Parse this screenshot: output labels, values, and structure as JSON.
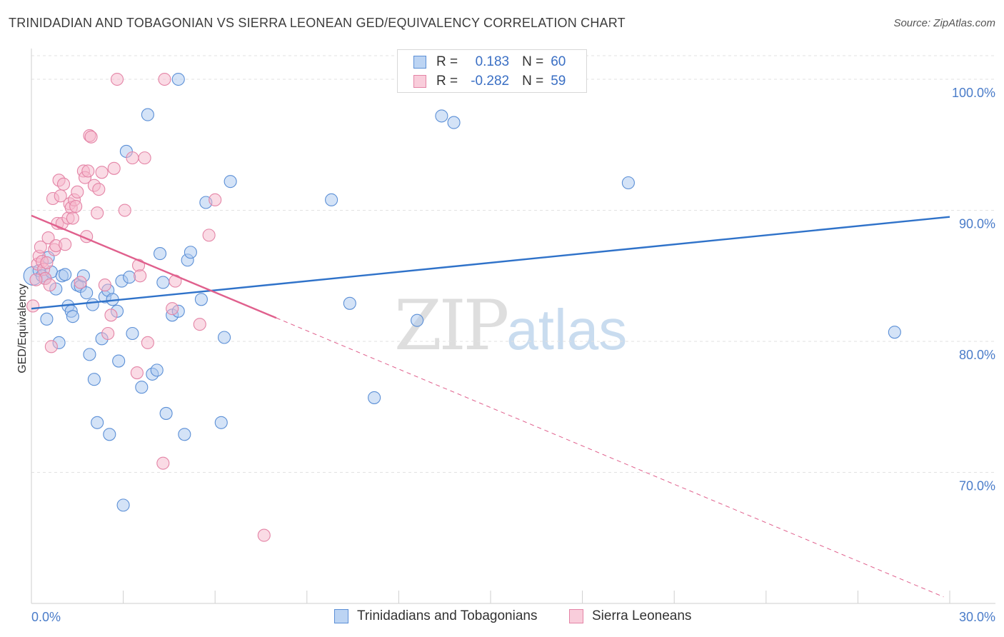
{
  "header": {
    "title": "TRINIDADIAN AND TOBAGONIAN VS SIERRA LEONEAN GED/EQUIVALENCY CORRELATION CHART",
    "source": "Source: ZipAtlas.com"
  },
  "watermark": {
    "zip": "ZIP",
    "atlas": "atlas"
  },
  "legend": {
    "rows": [
      {
        "r_label": "R =",
        "r_value": "0.183",
        "n_label": "N =",
        "n_value": "60"
      },
      {
        "r_label": "R =",
        "r_value": "-0.282",
        "n_label": "N =",
        "n_value": "59"
      }
    ]
  },
  "colors": {
    "blue_fill": "#a9c8f0",
    "blue_stroke": "#5b8fd6",
    "blue_line": "#2f72c9",
    "pink_fill": "#f5b8cb",
    "pink_stroke": "#e484a6",
    "pink_line": "#e0608d",
    "grid": "#e2e2e2",
    "tick_text": "#4a7cc9"
  },
  "chart_data": {
    "type": "scatter",
    "title": "TRINIDADIAN AND TOBAGONIAN VS SIERRA LEONEAN GED/EQUIVALENCY CORRELATION CHART",
    "xlabel": "",
    "ylabel": "GED/Equivalency",
    "xlim": [
      0,
      30
    ],
    "ylim": [
      60,
      101.8
    ],
    "x_tick_labels": [
      "0.0%",
      "30.0%"
    ],
    "y_ticks": [
      70,
      80,
      90,
      100
    ],
    "y_tick_labels": [
      "70.0%",
      "80.0%",
      "90.0%",
      "100.0%"
    ],
    "grid": true,
    "legend_position": "bottom-center",
    "series": [
      {
        "name": "Trinidadians and Tobagonians",
        "color": "blue",
        "trend": {
          "x": [
            0,
            30
          ],
          "y": [
            82.5,
            89.5
          ],
          "dashed_from": null
        },
        "points": [
          {
            "x": 0.05,
            "y": 85.0,
            "large": true
          },
          {
            "x": 0.25,
            "y": 85.4
          },
          {
            "x": 0.35,
            "y": 85.0
          },
          {
            "x": 0.45,
            "y": 84.8
          },
          {
            "x": 0.55,
            "y": 86.4
          },
          {
            "x": 0.65,
            "y": 85.3
          },
          {
            "x": 0.8,
            "y": 84.0
          },
          {
            "x": 0.5,
            "y": 81.7
          },
          {
            "x": 0.9,
            "y": 79.9
          },
          {
            "x": 1.0,
            "y": 85.0
          },
          {
            "x": 1.1,
            "y": 85.1
          },
          {
            "x": 1.2,
            "y": 82.7
          },
          {
            "x": 1.3,
            "y": 82.3
          },
          {
            "x": 1.35,
            "y": 81.9
          },
          {
            "x": 1.5,
            "y": 84.3
          },
          {
            "x": 1.6,
            "y": 84.2
          },
          {
            "x": 1.7,
            "y": 85.0
          },
          {
            "x": 1.8,
            "y": 83.7
          },
          {
            "x": 1.9,
            "y": 79.0
          },
          {
            "x": 2.0,
            "y": 82.8
          },
          {
            "x": 2.05,
            "y": 77.1
          },
          {
            "x": 2.15,
            "y": 73.8
          },
          {
            "x": 2.3,
            "y": 80.2
          },
          {
            "x": 2.4,
            "y": 83.4
          },
          {
            "x": 2.5,
            "y": 83.9
          },
          {
            "x": 2.55,
            "y": 72.9
          },
          {
            "x": 2.65,
            "y": 83.2
          },
          {
            "x": 2.8,
            "y": 82.3
          },
          {
            "x": 2.85,
            "y": 78.5
          },
          {
            "x": 2.95,
            "y": 84.6
          },
          {
            "x": 3.0,
            "y": 67.5
          },
          {
            "x": 3.1,
            "y": 94.5
          },
          {
            "x": 3.2,
            "y": 84.9
          },
          {
            "x": 3.3,
            "y": 80.6
          },
          {
            "x": 3.6,
            "y": 76.5
          },
          {
            "x": 3.8,
            "y": 97.3
          },
          {
            "x": 3.95,
            "y": 77.5
          },
          {
            "x": 4.1,
            "y": 77.8
          },
          {
            "x": 4.2,
            "y": 86.7
          },
          {
            "x": 4.3,
            "y": 84.5
          },
          {
            "x": 4.4,
            "y": 74.5
          },
          {
            "x": 4.6,
            "y": 82.0
          },
          {
            "x": 4.8,
            "y": 82.3
          },
          {
            "x": 4.8,
            "y": 100.0
          },
          {
            "x": 5.0,
            "y": 72.9
          },
          {
            "x": 5.1,
            "y": 86.2
          },
          {
            "x": 5.2,
            "y": 86.8
          },
          {
            "x": 5.55,
            "y": 83.2
          },
          {
            "x": 5.7,
            "y": 90.6
          },
          {
            "x": 6.2,
            "y": 73.8
          },
          {
            "x": 6.3,
            "y": 80.3
          },
          {
            "x": 6.5,
            "y": 92.2
          },
          {
            "x": 9.8,
            "y": 90.8
          },
          {
            "x": 10.4,
            "y": 82.9
          },
          {
            "x": 11.2,
            "y": 75.7
          },
          {
            "x": 12.6,
            "y": 81.6
          },
          {
            "x": 13.4,
            "y": 97.2
          },
          {
            "x": 13.8,
            "y": 96.7
          },
          {
            "x": 19.5,
            "y": 92.1
          },
          {
            "x": 28.2,
            "y": 80.7
          }
        ]
      },
      {
        "name": "Sierra Leoneans",
        "color": "pink",
        "trend": {
          "x": [
            0,
            29.8
          ],
          "y": [
            89.6,
            60.5
          ],
          "dashed_from": 8.0
        },
        "points": [
          {
            "x": 0.05,
            "y": 82.7
          },
          {
            "x": 0.2,
            "y": 85.9
          },
          {
            "x": 0.25,
            "y": 86.5
          },
          {
            "x": 0.3,
            "y": 87.2
          },
          {
            "x": 0.35,
            "y": 86.1
          },
          {
            "x": 0.4,
            "y": 85.5
          },
          {
            "x": 0.45,
            "y": 84.8
          },
          {
            "x": 0.5,
            "y": 86.0
          },
          {
            "x": 0.55,
            "y": 87.9
          },
          {
            "x": 0.6,
            "y": 84.3
          },
          {
            "x": 0.65,
            "y": 79.6
          },
          {
            "x": 0.7,
            "y": 90.9
          },
          {
            "x": 0.75,
            "y": 87.0
          },
          {
            "x": 0.8,
            "y": 87.3
          },
          {
            "x": 0.85,
            "y": 89.0
          },
          {
            "x": 0.9,
            "y": 92.3
          },
          {
            "x": 0.95,
            "y": 91.1
          },
          {
            "x": 1.0,
            "y": 89.0
          },
          {
            "x": 1.05,
            "y": 92.0
          },
          {
            "x": 1.1,
            "y": 87.4
          },
          {
            "x": 1.2,
            "y": 89.4
          },
          {
            "x": 1.25,
            "y": 90.5
          },
          {
            "x": 1.3,
            "y": 90.2
          },
          {
            "x": 1.35,
            "y": 89.4
          },
          {
            "x": 1.4,
            "y": 90.8
          },
          {
            "x": 1.45,
            "y": 90.3
          },
          {
            "x": 1.5,
            "y": 91.4
          },
          {
            "x": 1.6,
            "y": 84.5
          },
          {
            "x": 1.7,
            "y": 93.0
          },
          {
            "x": 1.75,
            "y": 92.5
          },
          {
            "x": 1.8,
            "y": 88.0
          },
          {
            "x": 1.85,
            "y": 93.0
          },
          {
            "x": 1.9,
            "y": 95.7
          },
          {
            "x": 1.95,
            "y": 95.6
          },
          {
            "x": 2.05,
            "y": 91.9
          },
          {
            "x": 2.15,
            "y": 89.8
          },
          {
            "x": 2.2,
            "y": 91.6
          },
          {
            "x": 2.3,
            "y": 92.9
          },
          {
            "x": 2.4,
            "y": 84.3
          },
          {
            "x": 2.5,
            "y": 80.6
          },
          {
            "x": 2.6,
            "y": 82.0
          },
          {
            "x": 2.7,
            "y": 93.2
          },
          {
            "x": 2.8,
            "y": 100.0
          },
          {
            "x": 3.05,
            "y": 90.0
          },
          {
            "x": 3.3,
            "y": 94.0
          },
          {
            "x": 3.45,
            "y": 77.6
          },
          {
            "x": 3.5,
            "y": 85.8
          },
          {
            "x": 3.55,
            "y": 85.0
          },
          {
            "x": 3.7,
            "y": 94.0
          },
          {
            "x": 3.8,
            "y": 79.9
          },
          {
            "x": 4.3,
            "y": 70.7
          },
          {
            "x": 4.35,
            "y": 100.0
          },
          {
            "x": 4.6,
            "y": 82.5
          },
          {
            "x": 4.7,
            "y": 84.6
          },
          {
            "x": 5.5,
            "y": 81.3
          },
          {
            "x": 5.8,
            "y": 88.1
          },
          {
            "x": 6.0,
            "y": 90.8
          },
          {
            "x": 7.6,
            "y": 65.2
          },
          {
            "x": 0.15,
            "y": 84.7
          }
        ]
      }
    ]
  },
  "bottom_legend": {
    "items": [
      "Trinidadians and Tobagonians",
      "Sierra Leoneans"
    ]
  }
}
